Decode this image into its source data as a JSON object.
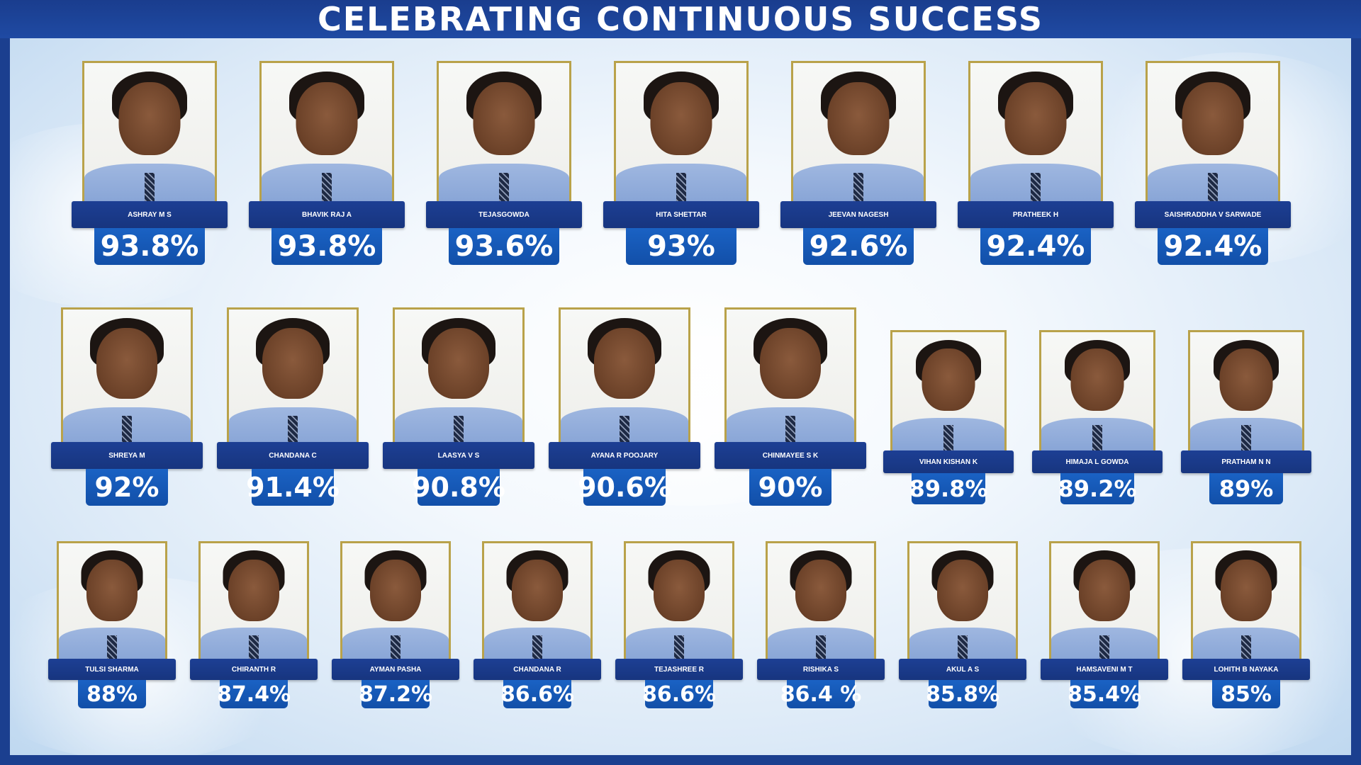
{
  "header": {
    "title": "CELEBRATING CONTINUOUS SUCCESS"
  },
  "colors": {
    "banner": "#1a3d8e",
    "name_bar": "#1d3f94",
    "score_box": "#1a62c4",
    "frame": "#b9a24a"
  },
  "row1": [
    {
      "name": "ASHRAY M S",
      "score": "93.8%"
    },
    {
      "name": "BHAVIK RAJ A",
      "score": "93.8%"
    },
    {
      "name": "TEJASGOWDA",
      "score": "93.6%"
    },
    {
      "name": "HITA SHETTAR",
      "score": "93%"
    },
    {
      "name": "JEEVAN NAGESH",
      "score": "92.6%"
    },
    {
      "name": "PRATHEEK H",
      "score": "92.4%"
    },
    {
      "name": "SAISHRADDHA V SARWADE",
      "score": "92.4%"
    }
  ],
  "row2": [
    {
      "name": "SHREYA M",
      "score": "92%"
    },
    {
      "name": "CHANDANA C",
      "score": "91.4%"
    },
    {
      "name": "LAASYA V S",
      "score": "90.8%"
    },
    {
      "name": "AYANA R POOJARY",
      "score": "90.6%"
    },
    {
      "name": "CHINMAYEE S K",
      "score": "90%"
    },
    {
      "name": "VIHAN KISHAN K",
      "score": "89.8%"
    },
    {
      "name": "HIMAJA L GOWDA",
      "score": "89.2%"
    },
    {
      "name": "PRATHAM N N",
      "score": "89%"
    }
  ],
  "row3": [
    {
      "name": "TULSI SHARMA",
      "score": "88%"
    },
    {
      "name": "CHIRANTH R",
      "score": "87.4%"
    },
    {
      "name": "AYMAN PASHA",
      "score": "87.2%"
    },
    {
      "name": "CHANDANA R",
      "score": "86.6%"
    },
    {
      "name": "TEJASHREE R",
      "score": "86.6%"
    },
    {
      "name": "RISHIKA S",
      "score": "86.4 %"
    },
    {
      "name": "AKUL A S",
      "score": "85.8%"
    },
    {
      "name": "HAMSAVENI M T",
      "score": "85.4%"
    },
    {
      "name": "LOHITH B NAYAKA",
      "score": "85%"
    }
  ]
}
